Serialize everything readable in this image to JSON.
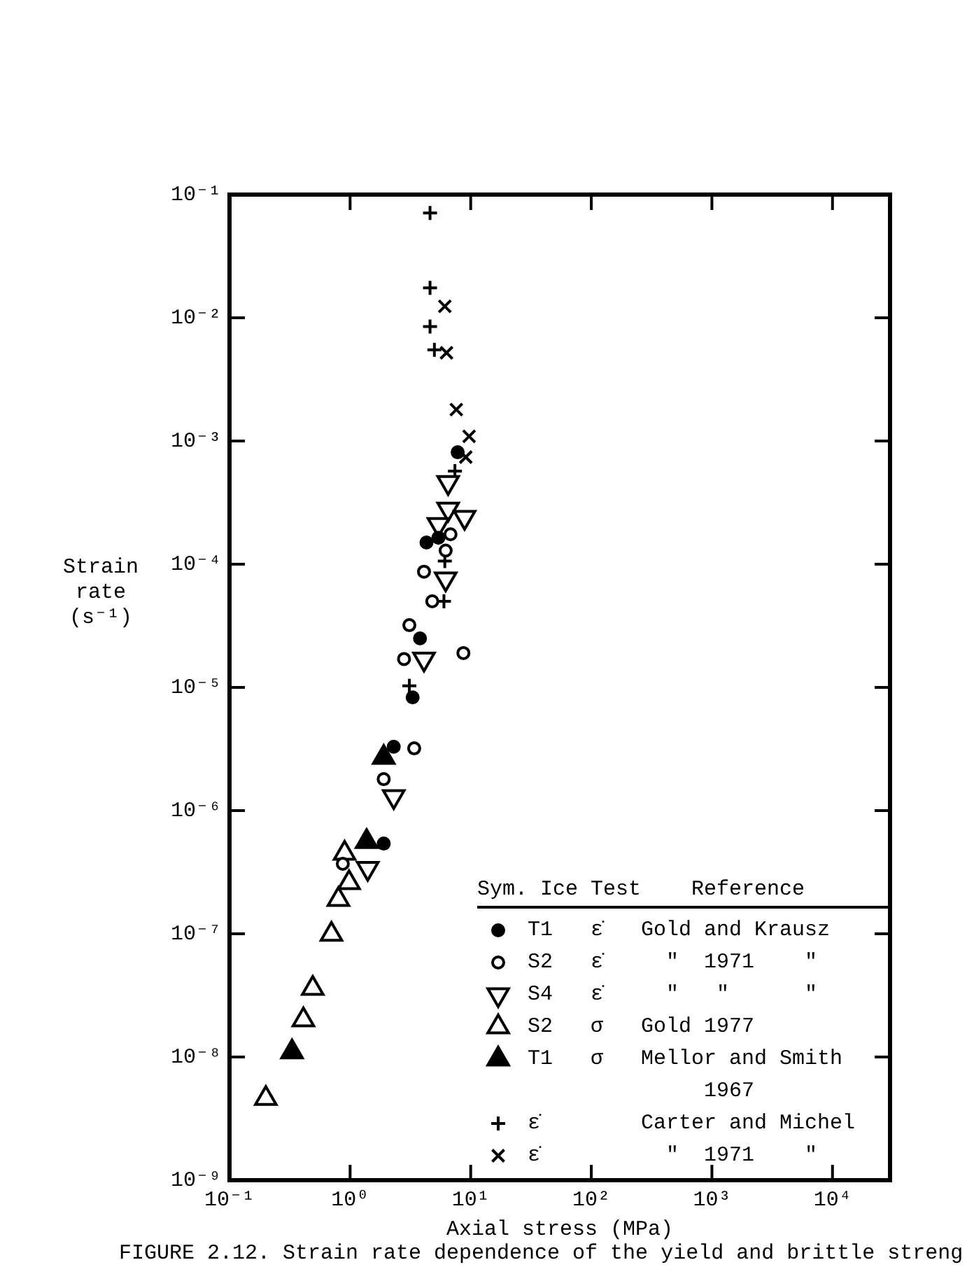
{
  "chart_data": {
    "type": "scatter",
    "xlabel": "Axial stress (MPa)",
    "ylabel": "Strain rate (s⁻¹)",
    "legend_title": "Sym. Ice Test    Reference",
    "legend": "bottom right",
    "log": "xy",
    "grid": false,
    "annotations": [
      "FIGURE 2.12. Strain rate dependence of the yield and brittle streng"
    ],
    "xlim": [
      0.1,
      30000
    ],
    "ylim": [
      1e-09,
      0.1
    ],
    "xticks": [
      {
        "value": 0.1,
        "label": "10⁻¹"
      },
      {
        "value": 1,
        "label": "10⁰"
      },
      {
        "value": 10,
        "label": "10¹"
      },
      {
        "value": 100,
        "label": "10²"
      },
      {
        "value": 1000,
        "label": "10³"
      },
      {
        "value": 10000,
        "label": "10⁴"
      }
    ],
    "yticks": [
      {
        "value": 1e-09,
        "label": "10⁻⁹"
      },
      {
        "value": 1e-08,
        "label": "10⁻⁸"
      },
      {
        "value": 1e-07,
        "label": "10⁻⁷"
      },
      {
        "value": 1e-06,
        "label": "10⁻⁶"
      },
      {
        "value": 1e-05,
        "label": "10⁻⁵"
      },
      {
        "value": 0.0001,
        "label": "10⁻⁴"
      },
      {
        "value": 0.001,
        "label": "10⁻³"
      },
      {
        "value": 0.01,
        "label": "10⁻²"
      },
      {
        "value": 0.1,
        "label": "10⁻¹"
      }
    ],
    "series": [
      {
        "name": "T1   ε̇   Gold and Krausz",
        "color": "#000000",
        "marker": "circle",
        "x": [
          7.8,
          4.3,
          5.4,
          3.8,
          3.3,
          2.3,
          1.9
        ],
        "values": [
          0.00081,
          0.00015,
          0.000164,
          2.5e-05,
          8.3e-06,
          3.3e-06,
          5.4e-07
        ]
      },
      {
        "name": "S2   ε̇     \"  1971    \"",
        "color": "#000000",
        "marker": "circle",
        "x": [
          6.2,
          6.8,
          4.1,
          4.8,
          3.1,
          2.8,
          8.7,
          3.4,
          1.9,
          0.87
        ],
        "values": [
          0.000129,
          0.000175,
          8.7e-05,
          5e-05,
          3.2e-05,
          1.7e-05,
          1.9e-05,
          3.2e-06,
          1.8e-06,
          3.7e-07
        ]
      },
      {
        "name": "S4   ε̇     \"   \"      \"",
        "color": "#000000",
        "marker": "triangle",
        "x": [
          6.5,
          6.5,
          8.9,
          5.4,
          6.2,
          4.1,
          2.3,
          1.4
        ],
        "values": [
          0.00046,
          0.00028,
          0.00024,
          0.00021,
          7.6e-05,
          1.7e-05,
          1.3e-06,
          3.4e-07
        ]
      },
      {
        "name": "S2   σ   Gold 1977",
        "color": "#000000",
        "marker": "triangle",
        "x": [
          0.9,
          0.98,
          0.8,
          0.7,
          0.49,
          0.41,
          0.2
        ],
        "values": [
          4.5e-07,
          2.6e-07,
          1.9e-07,
          9.9e-08,
          3.6e-08,
          2e-08,
          4.6e-09
        ]
      },
      {
        "name": "T1   σ   Mellor and Smith\n              1967",
        "color": "#000000",
        "marker": "triangle",
        "x": [
          0.33,
          1.37,
          1.9
        ],
        "values": [
          1.1e-08,
          5.6e-07,
          2.7e-06
        ]
      },
      {
        "name": "ε̇        Carter and Michel",
        "color": "#000000",
        "marker": "cross",
        "x": [
          4.6,
          4.6,
          4.6,
          5.0,
          7.4,
          6.1,
          6.0,
          3.1
        ],
        "values": [
          0.071,
          0.0175,
          0.0085,
          0.0055,
          0.00057,
          0.000106,
          5e-05,
          1.03e-05
        ]
      },
      {
        "name": "ε̇          \"  1971    \"",
        "color": "#000000",
        "marker": "cross",
        "x": [
          6.1,
          6.3,
          7.6,
          9.7,
          9.1
        ],
        "values": [
          0.0124,
          0.0052,
          0.0018,
          0.00109,
          0.00074
        ]
      }
    ]
  }
}
